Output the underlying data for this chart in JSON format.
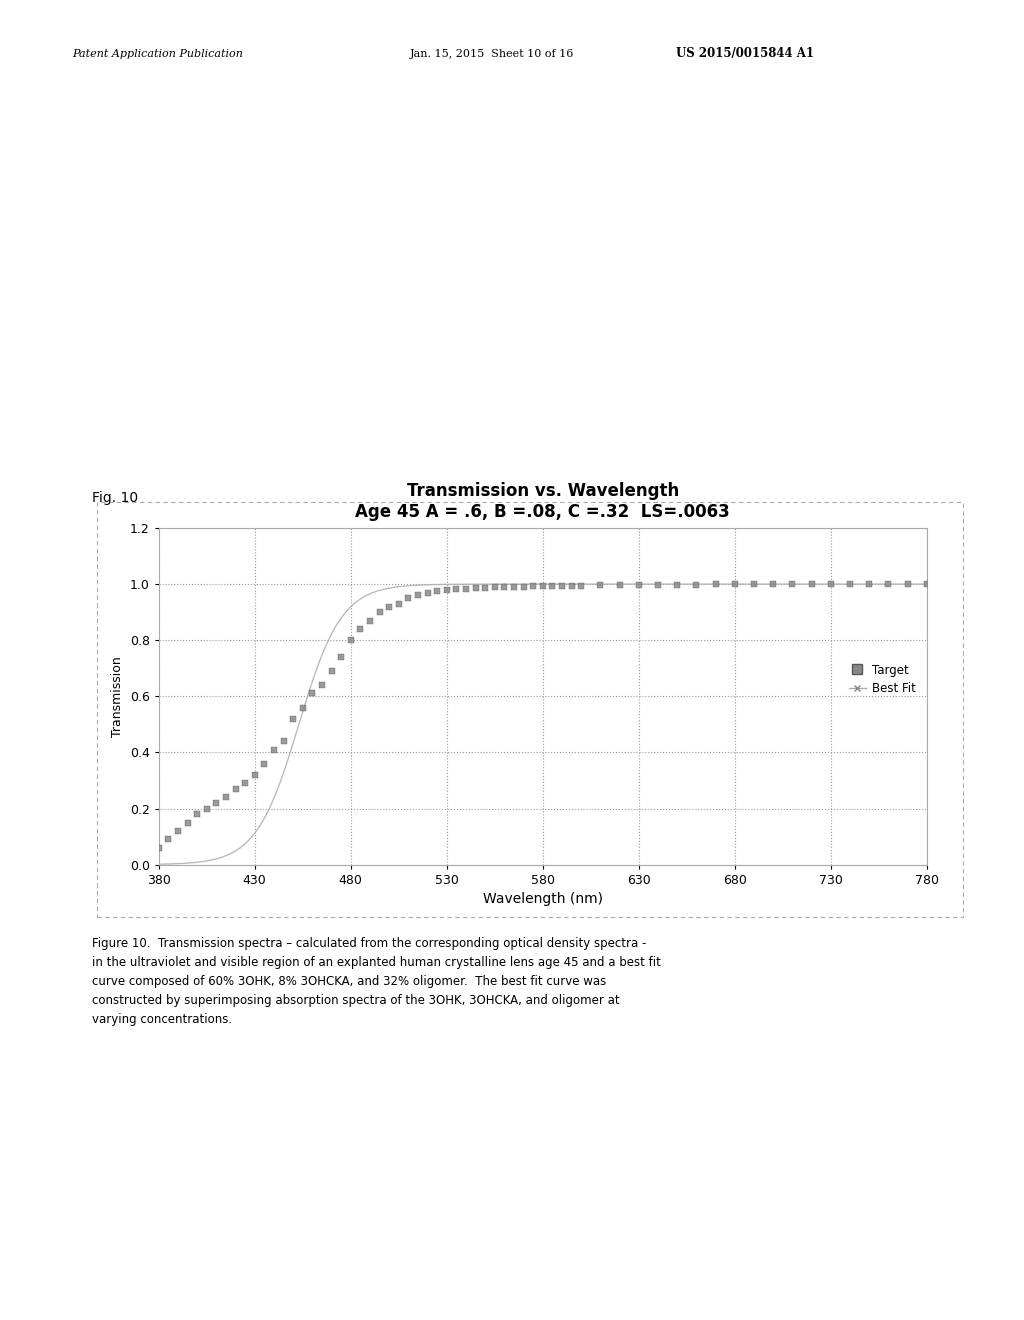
{
  "title_line1": "Transmission vs. Wavelength",
  "title_line2": "Age 45 A = .6, B =.08, C =.32  LS=.0063",
  "xlabel": "Wavelength (nm)",
  "ylabel": "Transmission",
  "fig_label": "Fig. 10",
  "header_left": "Patent Application Publication",
  "header_center": "Jan. 15, 2015  Sheet 10 of 16",
  "header_right": "US 2015/0015844 A1",
  "caption": "Figure 10.  Transmission spectra – calculated from the corresponding optical density spectra -\nin the ultraviolet and visible region of an explanted human crystalline lens age 45 and a best fit\ncurve composed of 60% 3OHK, 8% 3OHCKA, and 32% oligomer.  The best fit curve was\nconstructed by superimposing absorption spectra of the 3OHK, 3OHCKA, and oligomer at\nvarying concentrations.",
  "xlim": [
    380,
    780
  ],
  "ylim": [
    0,
    1.2
  ],
  "xticks": [
    380,
    430,
    480,
    530,
    580,
    630,
    680,
    730,
    780
  ],
  "yticks": [
    0,
    0.2,
    0.4,
    0.6,
    0.8,
    1.0,
    1.2
  ],
  "bg_color": "#ffffff",
  "plot_bg_color": "#ffffff",
  "grid_color": "#999999",
  "scatter_color": "#888888",
  "line_color": "#aaaaaa",
  "target_vals": [
    0.06,
    0.09,
    0.12,
    0.15,
    0.18,
    0.2,
    0.22,
    0.24,
    0.27,
    0.29,
    0.32,
    0.36,
    0.41,
    0.44,
    0.52,
    0.56,
    0.61,
    0.64,
    0.69,
    0.74,
    0.8,
    0.84,
    0.87,
    0.9,
    0.92,
    0.93,
    0.95,
    0.96,
    0.97,
    0.975,
    0.98,
    0.982,
    0.984,
    0.985,
    0.987,
    0.988,
    0.989,
    0.99,
    0.991,
    0.992,
    0.993,
    0.993,
    0.994,
    0.994,
    0.995,
    0.996,
    0.997,
    0.997,
    0.998,
    0.998,
    0.998,
    0.999,
    0.999,
    0.999,
    0.999,
    1.0,
    1.0,
    1.0,
    1.0,
    1.0,
    1.0,
    1.0,
    1.0
  ],
  "wavelengths_target": [
    380,
    385,
    390,
    395,
    400,
    405,
    410,
    415,
    420,
    425,
    430,
    435,
    440,
    445,
    450,
    455,
    460,
    465,
    470,
    475,
    480,
    485,
    490,
    495,
    500,
    505,
    510,
    515,
    520,
    525,
    530,
    535,
    540,
    545,
    550,
    555,
    560,
    565,
    570,
    575,
    580,
    585,
    590,
    595,
    600,
    610,
    620,
    630,
    640,
    650,
    660,
    670,
    680,
    690,
    700,
    710,
    720,
    730,
    740,
    750,
    760,
    770,
    780
  ]
}
